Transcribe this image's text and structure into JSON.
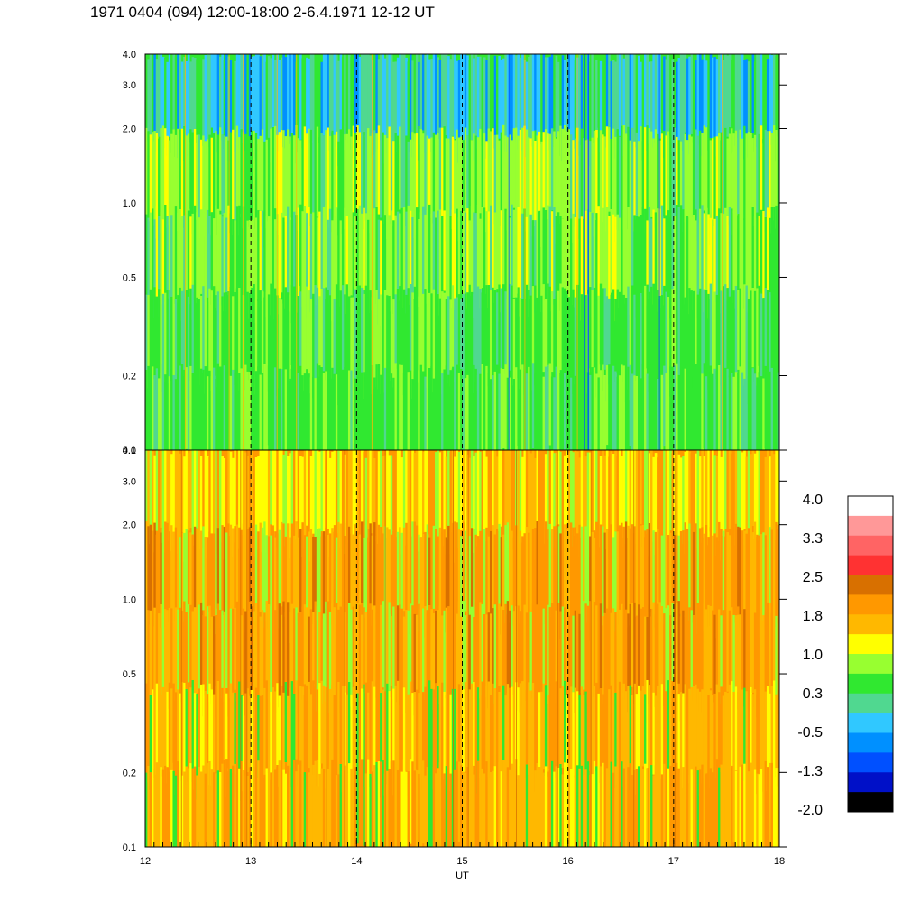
{
  "title": "1971 0404 (094) 12:00-18:00 2-6.4.1971 12-12 UT",
  "chart_data": [
    {
      "type": "heatmap",
      "panel": "top",
      "xlim": [
        12,
        18
      ],
      "ylim": [
        0.1,
        4.0
      ],
      "yscale": "log",
      "ytick_values": [
        0.1,
        0.2,
        0.5,
        1.0,
        2.0,
        3.0,
        4.0
      ],
      "ytick_labels": [
        "0.1",
        "0.2",
        "0.5",
        "1.0",
        "2.0",
        "3.0",
        "4.0"
      ],
      "hour_markers": [
        13,
        14,
        15,
        16,
        17
      ],
      "dominant_level": 0.3
    },
    {
      "type": "heatmap",
      "panel": "bottom",
      "xlim": [
        12,
        18
      ],
      "ylim": [
        0.1,
        4.0
      ],
      "yscale": "log",
      "xlabel": "UT",
      "xtick_values": [
        12,
        13,
        14,
        15,
        16,
        17,
        18
      ],
      "xtick_labels": [
        "12",
        "13",
        "14",
        "15",
        "16",
        "17",
        "18"
      ],
      "ytick_values": [
        0.1,
        0.2,
        0.5,
        1.0,
        2.0,
        3.0,
        4.0
      ],
      "ytick_labels": [
        "0.1",
        "0.2",
        "0.5",
        "1.0",
        "2.0",
        "3.0",
        "4.0"
      ],
      "hour_markers": [
        13,
        14,
        15,
        16,
        17
      ],
      "dominant_level": 1.8
    }
  ],
  "colorbar": {
    "labels": [
      "4.0",
      "3.3",
      "2.5",
      "1.8",
      "1.0",
      "0.3",
      "-0.5",
      "-1.3",
      "-2.0"
    ],
    "colors": [
      "#ffffff",
      "#ff9898",
      "#ff6464",
      "#ff3232",
      "#d87000",
      "#ff9800",
      "#ffb800",
      "#ffff00",
      "#98ff30",
      "#30e830",
      "#50d890",
      "#30c8ff",
      "#0090ff",
      "#0050ff",
      "#0010c8",
      "#000000"
    ]
  },
  "palette": {
    "top": [
      "#30e830",
      "#50d890",
      "#98ff30",
      "#30c8ff",
      "#0090ff",
      "#ffff00"
    ],
    "bottom": [
      "#ff9800",
      "#ffb800",
      "#ffff00",
      "#98ff30",
      "#d87000",
      "#30e830"
    ]
  }
}
